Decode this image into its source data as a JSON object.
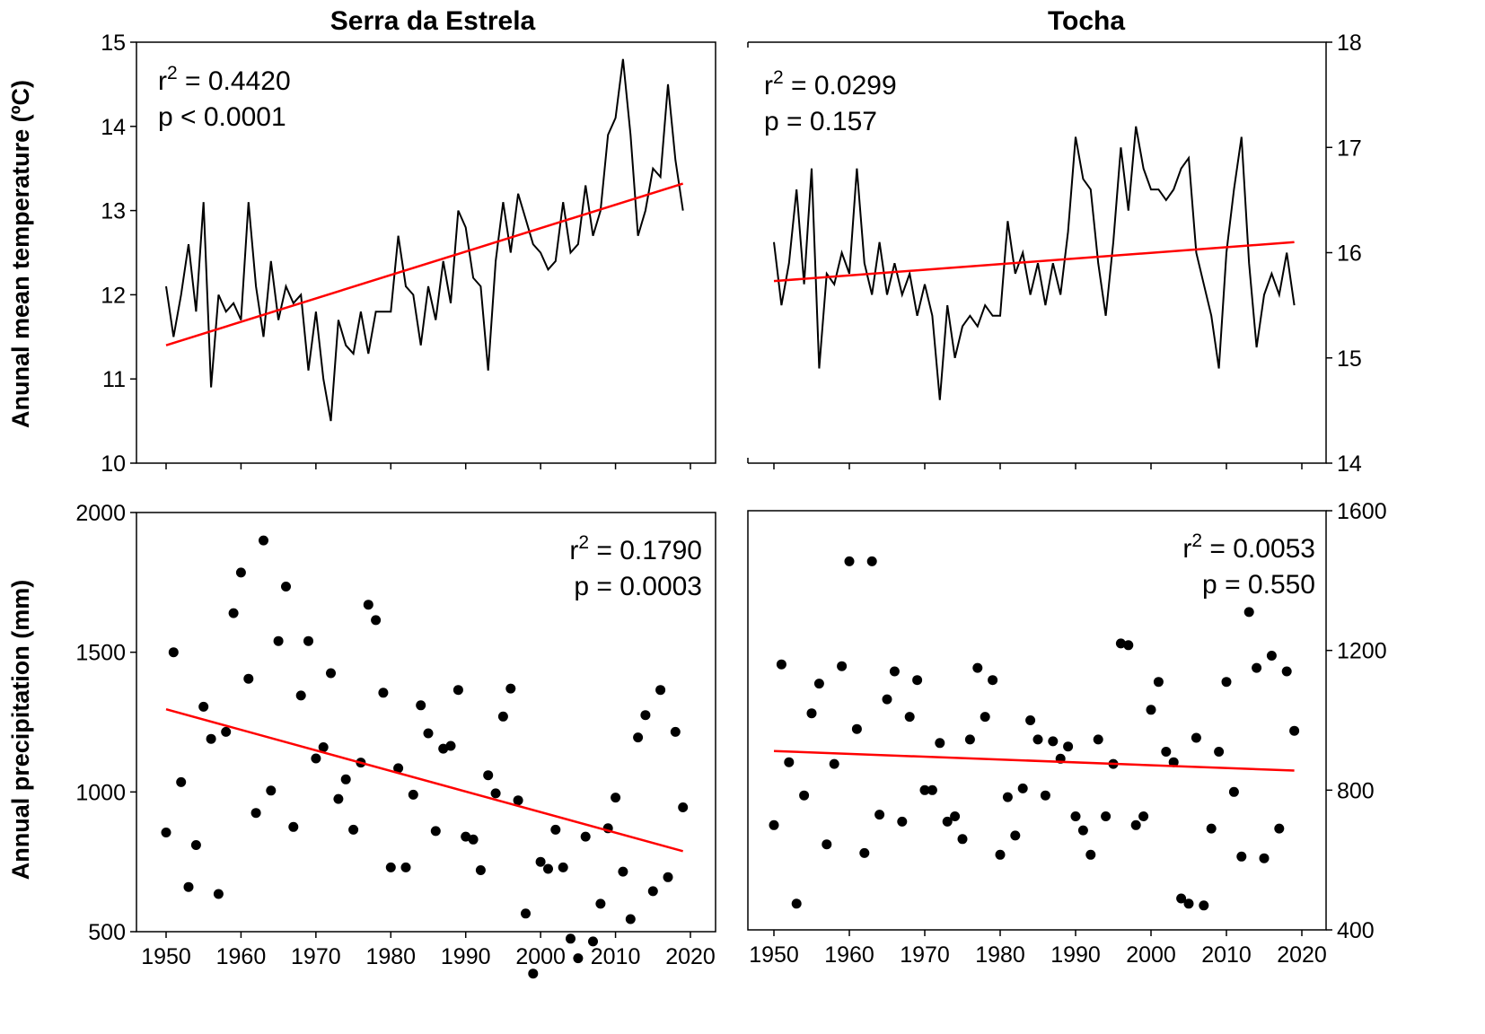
{
  "figure": {
    "col_titles": [
      "Serra da Estrela",
      "Tocha"
    ],
    "row_labels": [
      "Anunal mean temperature (ºC)",
      "Annual precipitation (mm)"
    ]
  },
  "colors": {
    "data": "#000000",
    "trend": "#ff0000"
  },
  "chart_data": [
    {
      "id": "temp_serra",
      "type": "line",
      "title": "Serra da Estrela",
      "ylabel": "Anunal mean temperature (ºC)",
      "xlim": [
        1950,
        2019
      ],
      "ylim": [
        10,
        15
      ],
      "yticks": [
        10,
        11,
        12,
        13,
        14,
        15
      ],
      "xticks": [
        1950,
        1960,
        1970,
        1980,
        1990,
        2000,
        2010,
        2020
      ],
      "x": [
        1950,
        1951,
        1952,
        1953,
        1954,
        1955,
        1956,
        1957,
        1958,
        1959,
        1960,
        1961,
        1962,
        1963,
        1964,
        1965,
        1966,
        1967,
        1968,
        1969,
        1970,
        1971,
        1972,
        1973,
        1974,
        1975,
        1976,
        1977,
        1978,
        1979,
        1980,
        1981,
        1982,
        1983,
        1984,
        1985,
        1986,
        1987,
        1988,
        1989,
        1990,
        1991,
        1992,
        1993,
        1994,
        1995,
        1996,
        1997,
        1998,
        1999,
        2000,
        2001,
        2002,
        2003,
        2004,
        2005,
        2006,
        2007,
        2008,
        2009,
        2010,
        2011,
        2012,
        2013,
        2014,
        2015,
        2016,
        2017,
        2018,
        2019
      ],
      "y": [
        12.1,
        11.5,
        12.0,
        12.6,
        11.8,
        13.1,
        10.9,
        12.0,
        11.8,
        11.9,
        11.7,
        13.1,
        12.1,
        11.5,
        12.4,
        11.7,
        12.1,
        11.9,
        12.0,
        11.1,
        11.8,
        11.0,
        10.5,
        11.7,
        11.4,
        11.3,
        11.8,
        11.3,
        11.8,
        11.8,
        11.8,
        12.7,
        12.1,
        12.0,
        11.4,
        12.1,
        11.7,
        12.4,
        11.9,
        13.0,
        12.8,
        12.2,
        12.1,
        11.1,
        12.4,
        13.1,
        12.5,
        13.2,
        12.9,
        12.6,
        12.5,
        12.3,
        12.4,
        13.1,
        12.5,
        12.6,
        13.3,
        12.7,
        13.0,
        13.9,
        14.1,
        14.8,
        13.9,
        12.7,
        13.0,
        13.5,
        13.4,
        14.5,
        13.6,
        13.0
      ],
      "trend": {
        "x": [
          1950,
          2019
        ],
        "y": [
          11.4,
          13.32
        ]
      },
      "annotation": {
        "r2_label": "r",
        "r2_exp": "2",
        "r2_value": " = 0.4420",
        "p_text": "p < 0.0001",
        "position": "top-left"
      }
    },
    {
      "id": "temp_tocha",
      "type": "line",
      "title": "Tocha",
      "xlim": [
        1950,
        2019
      ],
      "ylim": [
        14,
        18
      ],
      "yticks": [
        14,
        15,
        16,
        17,
        18
      ],
      "xticks": [
        1950,
        1960,
        1970,
        1980,
        1990,
        2000,
        2010,
        2020
      ],
      "x": [
        1950,
        1951,
        1952,
        1953,
        1954,
        1955,
        1956,
        1957,
        1958,
        1959,
        1960,
        1961,
        1962,
        1963,
        1964,
        1965,
        1966,
        1967,
        1968,
        1969,
        1970,
        1971,
        1972,
        1973,
        1974,
        1975,
        1976,
        1977,
        1978,
        1979,
        1980,
        1981,
        1982,
        1983,
        1984,
        1985,
        1986,
        1987,
        1988,
        1989,
        1990,
        1991,
        1992,
        1993,
        1994,
        1995,
        1996,
        1997,
        1998,
        1999,
        2000,
        2001,
        2002,
        2003,
        2004,
        2005,
        2006,
        2007,
        2008,
        2009,
        2010,
        2011,
        2012,
        2013,
        2014,
        2015,
        2016,
        2017,
        2018,
        2019
      ],
      "y": [
        16.1,
        15.5,
        15.9,
        16.6,
        15.7,
        16.8,
        14.9,
        15.8,
        15.7,
        16.0,
        15.8,
        16.8,
        15.9,
        15.6,
        16.1,
        15.6,
        15.9,
        15.6,
        15.8,
        15.4,
        15.7,
        15.4,
        14.6,
        15.5,
        15.0,
        15.3,
        15.4,
        15.3,
        15.5,
        15.4,
        15.4,
        16.3,
        15.8,
        16.0,
        15.6,
        15.9,
        15.5,
        15.9,
        15.6,
        16.2,
        17.1,
        16.7,
        16.6,
        15.9,
        15.4,
        16.1,
        17.0,
        16.4,
        17.2,
        16.8,
        16.6,
        16.6,
        16.5,
        16.6,
        16.8,
        16.9,
        16.0,
        15.7,
        15.4,
        14.9,
        16.0,
        16.6,
        17.1,
        15.9,
        15.1,
        15.6,
        15.8,
        15.6,
        16.0,
        15.5
      ],
      "trend": {
        "x": [
          1950,
          2019
        ],
        "y": [
          15.73,
          16.1
        ]
      },
      "annotation": {
        "r2_label": "r",
        "r2_exp": "2",
        "r2_value": " = 0.0299",
        "p_text": "p = 0.157",
        "position": "top-left"
      }
    },
    {
      "id": "precip_serra",
      "type": "scatter",
      "ylabel": "Annual precipitation (mm)",
      "xlabel": "",
      "xlim": [
        1950,
        2019
      ],
      "ylim": [
        500,
        2000
      ],
      "yticks": [
        500,
        1000,
        1500,
        2000
      ],
      "xticks": [
        1950,
        1960,
        1970,
        1980,
        1990,
        2000,
        2010,
        2020
      ],
      "x": [
        1950,
        1951,
        1952,
        1953,
        1954,
        1955,
        1956,
        1957,
        1958,
        1959,
        1960,
        1961,
        1962,
        1963,
        1964,
        1965,
        1966,
        1967,
        1968,
        1969,
        1970,
        1971,
        1972,
        1973,
        1974,
        1975,
        1976,
        1977,
        1978,
        1979,
        1980,
        1981,
        1982,
        1983,
        1984,
        1985,
        1986,
        1987,
        1988,
        1989,
        1990,
        1991,
        1992,
        1993,
        1994,
        1995,
        1996,
        1997,
        1998,
        1999,
        2000,
        2001,
        2002,
        2003,
        2004,
        2005,
        2006,
        2007,
        2008,
        2009,
        2010,
        2011,
        2012,
        2013,
        2014,
        2015,
        2016,
        2017,
        2018,
        2019
      ],
      "y": [
        855,
        1500,
        1035,
        660,
        810,
        1305,
        1190,
        635,
        1215,
        1640,
        1785,
        1405,
        925,
        1900,
        1005,
        1540,
        1735,
        875,
        1345,
        1540,
        1120,
        1160,
        1425,
        975,
        1045,
        865,
        1105,
        1670,
        1615,
        1355,
        730,
        1085,
        730,
        990,
        1310,
        1210,
        860,
        1155,
        1165,
        1365,
        840,
        830,
        720,
        1060,
        995,
        1270,
        1370,
        970,
        565,
        350,
        750,
        725,
        865,
        730,
        475,
        405,
        840,
        465,
        600,
        870,
        980,
        715,
        545,
        1195,
        1275,
        645,
        1365,
        695,
        1215,
        945
      ],
      "trend": {
        "x": [
          1950,
          2019
        ],
        "y": [
          1296,
          788
        ]
      },
      "annotation": {
        "r2_label": "r",
        "r2_exp": "2",
        "r2_value": " = 0.1790",
        "p_text": "p = 0.0003",
        "position": "top-right"
      }
    },
    {
      "id": "precip_tocha",
      "type": "scatter",
      "xlabel": "",
      "xlim": [
        1950,
        2019
      ],
      "ylim": [
        400,
        1600
      ],
      "yticks": [
        400,
        800,
        1200,
        1600
      ],
      "xticks": [
        1950,
        1960,
        1970,
        1980,
        1990,
        2000,
        2010,
        2020
      ],
      "x": [
        1950,
        1951,
        1952,
        1953,
        1954,
        1955,
        1956,
        1957,
        1958,
        1959,
        1960,
        1961,
        1962,
        1963,
        1964,
        1965,
        1966,
        1967,
        1968,
        1969,
        1970,
        1971,
        1972,
        1973,
        1974,
        1975,
        1976,
        1977,
        1978,
        1979,
        1980,
        1981,
        1982,
        1983,
        1984,
        1985,
        1986,
        1987,
        1988,
        1989,
        1990,
        1991,
        1992,
        1993,
        1994,
        1995,
        1996,
        1997,
        1998,
        1999,
        2000,
        2001,
        2002,
        2003,
        2004,
        2005,
        2006,
        2007,
        2008,
        2009,
        2010,
        2011,
        2012,
        2013,
        2014,
        2015,
        2016,
        2017,
        2018,
        2019
      ],
      "y": [
        700,
        1160,
        880,
        475,
        785,
        1020,
        1105,
        645,
        875,
        1155,
        1455,
        975,
        620,
        1455,
        730,
        1060,
        1140,
        710,
        1010,
        1115,
        800,
        800,
        935,
        710,
        725,
        660,
        945,
        1150,
        1010,
        1115,
        615,
        780,
        670,
        805,
        1000,
        945,
        785,
        940,
        890,
        925,
        725,
        685,
        615,
        945,
        725,
        875,
        1220,
        1215,
        700,
        725,
        1030,
        1110,
        910,
        880,
        490,
        475,
        950,
        470,
        690,
        910,
        1110,
        795,
        610,
        1310,
        1150,
        605,
        1185,
        690,
        1140,
        970
      ],
      "trend": {
        "x": [
          1950,
          2019
        ],
        "y": [
          912,
          856
        ]
      },
      "annotation": {
        "r2_label": "r",
        "r2_exp": "2",
        "r2_value": " = 0.0053",
        "p_text": "p = 0.550",
        "position": "top-right"
      }
    }
  ]
}
